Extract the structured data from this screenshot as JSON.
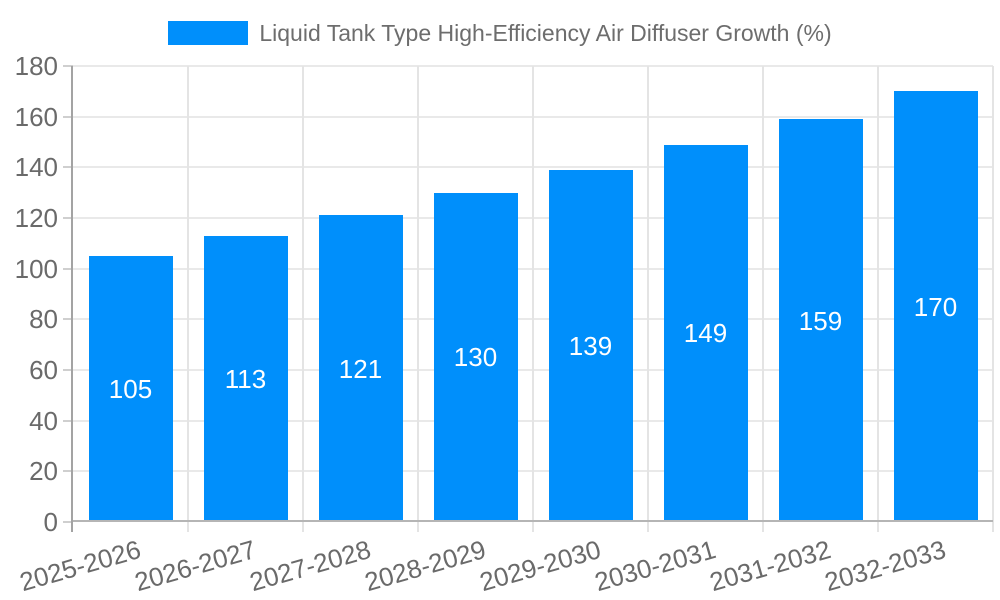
{
  "legend": {
    "label": "Liquid Tank Type High-Efficiency Air Diffuser Growth (%)",
    "swatch_color": "#008FFB"
  },
  "chart_data": {
    "type": "bar",
    "title": "Liquid Tank Type High-Efficiency Air Diffuser Growth (%)",
    "categories": [
      "2025-2026",
      "2026-2027",
      "2027-2028",
      "2028-2029",
      "2029-2030",
      "2030-2031",
      "2031-2032",
      "2032-2033"
    ],
    "values": [
      105,
      113,
      121,
      130,
      139,
      149,
      159,
      170
    ],
    "xlabel": "",
    "ylabel": "",
    "ylim": [
      0,
      180
    ],
    "ytick_step": 20,
    "yticks": [
      0,
      20,
      40,
      60,
      80,
      100,
      120,
      140,
      160,
      180
    ],
    "grid": true,
    "legend_position": "top",
    "bar_color": "#008FFB",
    "value_label_color": "#ffffff",
    "axis_label_color": "#6a6a6a",
    "gridline_color": "#e9e9e9",
    "axis_line_color": "#a3a3a3"
  }
}
